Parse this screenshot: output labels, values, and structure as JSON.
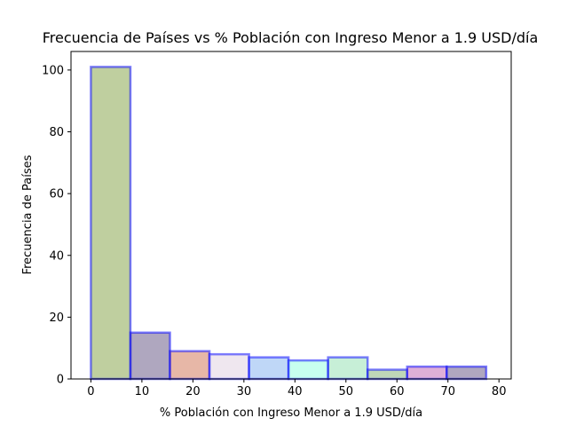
{
  "chart_data": {
    "type": "bar",
    "title": "Frecuencia de Países vs % Población con Ingreso Menor a 1.9 USD/día",
    "xlabel": "% Población con Ingreso Menor a 1.9 USD/día",
    "ylabel": "Frecuencia de Países",
    "xlim": [
      -3.9,
      82.4
    ],
    "ylim": [
      0,
      106
    ],
    "grid": false,
    "x_ticks": [
      0,
      10,
      20,
      30,
      40,
      50,
      60,
      70,
      80
    ],
    "y_ticks": [
      0,
      20,
      40,
      60,
      80,
      100
    ],
    "bins": [
      {
        "x0": 0.0,
        "x1": 7.75,
        "value": 101,
        "color": "#7f9f3f"
      },
      {
        "x0": 7.75,
        "x1": 15.5,
        "value": 15,
        "color": "#5f4f7f"
      },
      {
        "x0": 15.5,
        "x1": 23.25,
        "value": 9,
        "color": "#cf6f4f"
      },
      {
        "x0": 23.25,
        "x1": 31.0,
        "value": 8,
        "color": "#dfcfdf"
      },
      {
        "x0": 31.0,
        "x1": 38.75,
        "value": 7,
        "color": "#7faff0"
      },
      {
        "x0": 38.75,
        "x1": 46.5,
        "value": 6,
        "color": "#8fffdf"
      },
      {
        "x0": 46.5,
        "x1": 54.25,
        "value": 7,
        "color": "#8fdfaf"
      },
      {
        "x0": 54.25,
        "x1": 62.0,
        "value": 3,
        "color": "#7faf6f"
      },
      {
        "x0": 62.0,
        "x1": 69.75,
        "value": 4,
        "color": "#bf5faf"
      },
      {
        "x0": 69.75,
        "x1": 77.5,
        "value": 4,
        "color": "#5f4f7f"
      }
    ],
    "edge_color": "#0000ff"
  }
}
